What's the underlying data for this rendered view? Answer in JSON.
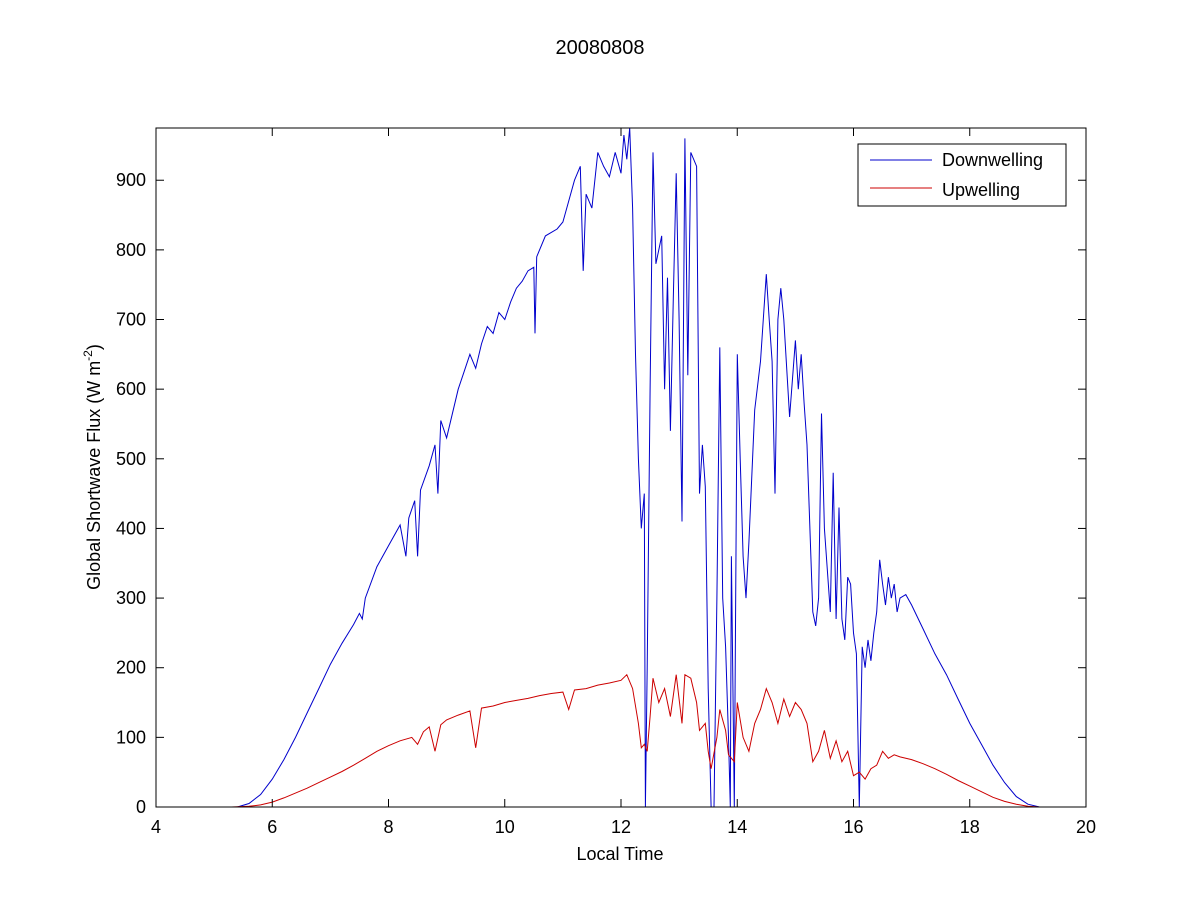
{
  "chart_data": {
    "type": "line",
    "title": "20080808",
    "xlabel": "Local Time",
    "ylabel": "Global Shortwave Flux (W m",
    "ylabel_sup": "-2",
    "ylabel_close": ")",
    "xlim": [
      4,
      20
    ],
    "ylim": [
      0,
      975
    ],
    "xticks": [
      4,
      6,
      8,
      10,
      12,
      14,
      16,
      18,
      20
    ],
    "yticks": [
      0,
      100,
      200,
      300,
      400,
      500,
      600,
      700,
      800,
      900
    ],
    "grid": false,
    "legend_position": "top-right",
    "series": [
      {
        "name": "Downwelling",
        "color": "#0000cc",
        "points": [
          [
            5.4,
            0
          ],
          [
            5.6,
            5
          ],
          [
            5.8,
            18
          ],
          [
            6.0,
            40
          ],
          [
            6.2,
            68
          ],
          [
            6.4,
            100
          ],
          [
            6.6,
            135
          ],
          [
            6.8,
            170
          ],
          [
            7.0,
            205
          ],
          [
            7.2,
            235
          ],
          [
            7.4,
            262
          ],
          [
            7.5,
            278
          ],
          [
            7.55,
            270
          ],
          [
            7.6,
            300
          ],
          [
            7.8,
            345
          ],
          [
            8.0,
            375
          ],
          [
            8.2,
            405
          ],
          [
            8.3,
            360
          ],
          [
            8.35,
            415
          ],
          [
            8.45,
            440
          ],
          [
            8.5,
            360
          ],
          [
            8.55,
            455
          ],
          [
            8.7,
            490
          ],
          [
            8.8,
            520
          ],
          [
            8.85,
            450
          ],
          [
            8.9,
            555
          ],
          [
            9.0,
            530
          ],
          [
            9.2,
            600
          ],
          [
            9.3,
            625
          ],
          [
            9.4,
            650
          ],
          [
            9.5,
            630
          ],
          [
            9.6,
            665
          ],
          [
            9.7,
            690
          ],
          [
            9.8,
            680
          ],
          [
            9.9,
            710
          ],
          [
            10.0,
            700
          ],
          [
            10.1,
            725
          ],
          [
            10.2,
            745
          ],
          [
            10.3,
            755
          ],
          [
            10.4,
            770
          ],
          [
            10.5,
            775
          ],
          [
            10.52,
            680
          ],
          [
            10.55,
            790
          ],
          [
            10.7,
            820
          ],
          [
            10.9,
            830
          ],
          [
            11.0,
            840
          ],
          [
            11.1,
            870
          ],
          [
            11.2,
            900
          ],
          [
            11.3,
            920
          ],
          [
            11.35,
            770
          ],
          [
            11.4,
            880
          ],
          [
            11.5,
            860
          ],
          [
            11.6,
            940
          ],
          [
            11.7,
            920
          ],
          [
            11.8,
            905
          ],
          [
            11.9,
            940
          ],
          [
            12.0,
            910
          ],
          [
            12.05,
            965
          ],
          [
            12.1,
            930
          ],
          [
            12.15,
            975
          ],
          [
            12.2,
            860
          ],
          [
            12.25,
            650
          ],
          [
            12.3,
            500
          ],
          [
            12.35,
            400
          ],
          [
            12.4,
            450
          ],
          [
            12.42,
            0
          ],
          [
            12.45,
            200
          ],
          [
            12.5,
            600
          ],
          [
            12.55,
            940
          ],
          [
            12.6,
            780
          ],
          [
            12.7,
            820
          ],
          [
            12.75,
            600
          ],
          [
            12.8,
            760
          ],
          [
            12.85,
            540
          ],
          [
            12.9,
            730
          ],
          [
            12.95,
            910
          ],
          [
            13.0,
            700
          ],
          [
            13.05,
            410
          ],
          [
            13.1,
            960
          ],
          [
            13.15,
            620
          ],
          [
            13.2,
            940
          ],
          [
            13.3,
            920
          ],
          [
            13.35,
            450
          ],
          [
            13.4,
            520
          ],
          [
            13.45,
            460
          ],
          [
            13.5,
            170
          ],
          [
            13.55,
            0
          ],
          [
            13.6,
            0
          ],
          [
            13.65,
            300
          ],
          [
            13.7,
            660
          ],
          [
            13.75,
            300
          ],
          [
            13.8,
            230
          ],
          [
            13.85,
            100
          ],
          [
            13.88,
            0
          ],
          [
            13.9,
            360
          ],
          [
            13.95,
            0
          ],
          [
            14.0,
            650
          ],
          [
            14.05,
            500
          ],
          [
            14.1,
            360
          ],
          [
            14.15,
            300
          ],
          [
            14.2,
            380
          ],
          [
            14.3,
            570
          ],
          [
            14.4,
            640
          ],
          [
            14.5,
            765
          ],
          [
            14.55,
            700
          ],
          [
            14.6,
            640
          ],
          [
            14.65,
            450
          ],
          [
            14.7,
            700
          ],
          [
            14.75,
            745
          ],
          [
            14.8,
            700
          ],
          [
            14.9,
            560
          ],
          [
            15.0,
            670
          ],
          [
            15.05,
            600
          ],
          [
            15.1,
            650
          ],
          [
            15.15,
            580
          ],
          [
            15.2,
            520
          ],
          [
            15.3,
            280
          ],
          [
            15.35,
            260
          ],
          [
            15.4,
            300
          ],
          [
            15.45,
            565
          ],
          [
            15.5,
            400
          ],
          [
            15.6,
            280
          ],
          [
            15.65,
            480
          ],
          [
            15.7,
            270
          ],
          [
            15.75,
            430
          ],
          [
            15.8,
            270
          ],
          [
            15.85,
            240
          ],
          [
            15.9,
            330
          ],
          [
            15.95,
            320
          ],
          [
            16.0,
            250
          ],
          [
            16.05,
            220
          ],
          [
            16.1,
            0
          ],
          [
            16.15,
            230
          ],
          [
            16.2,
            200
          ],
          [
            16.25,
            240
          ],
          [
            16.3,
            210
          ],
          [
            16.35,
            250
          ],
          [
            16.4,
            280
          ],
          [
            16.45,
            355
          ],
          [
            16.5,
            320
          ],
          [
            16.55,
            290
          ],
          [
            16.6,
            330
          ],
          [
            16.65,
            300
          ],
          [
            16.7,
            320
          ],
          [
            16.75,
            280
          ],
          [
            16.8,
            300
          ],
          [
            16.9,
            305
          ],
          [
            17.0,
            290
          ],
          [
            17.2,
            255
          ],
          [
            17.4,
            220
          ],
          [
            17.6,
            190
          ],
          [
            17.8,
            155
          ],
          [
            18.0,
            120
          ],
          [
            18.2,
            90
          ],
          [
            18.4,
            60
          ],
          [
            18.6,
            35
          ],
          [
            18.8,
            15
          ],
          [
            19.0,
            4
          ],
          [
            19.2,
            0
          ]
        ]
      },
      {
        "name": "Upwelling",
        "color": "#cc0000",
        "points": [
          [
            5.3,
            0
          ],
          [
            5.6,
            1
          ],
          [
            5.8,
            3
          ],
          [
            6.0,
            7
          ],
          [
            6.2,
            13
          ],
          [
            6.4,
            20
          ],
          [
            6.6,
            27
          ],
          [
            6.8,
            35
          ],
          [
            7.0,
            43
          ],
          [
            7.2,
            51
          ],
          [
            7.4,
            60
          ],
          [
            7.6,
            70
          ],
          [
            7.8,
            80
          ],
          [
            8.0,
            88
          ],
          [
            8.2,
            95
          ],
          [
            8.4,
            100
          ],
          [
            8.5,
            90
          ],
          [
            8.6,
            108
          ],
          [
            8.7,
            115
          ],
          [
            8.8,
            80
          ],
          [
            8.9,
            118
          ],
          [
            9.0,
            125
          ],
          [
            9.2,
            132
          ],
          [
            9.4,
            138
          ],
          [
            9.5,
            85
          ],
          [
            9.6,
            142
          ],
          [
            9.8,
            145
          ],
          [
            10.0,
            150
          ],
          [
            10.2,
            153
          ],
          [
            10.4,
            156
          ],
          [
            10.6,
            160
          ],
          [
            10.8,
            163
          ],
          [
            11.0,
            165
          ],
          [
            11.1,
            140
          ],
          [
            11.2,
            168
          ],
          [
            11.4,
            170
          ],
          [
            11.6,
            175
          ],
          [
            11.8,
            178
          ],
          [
            12.0,
            182
          ],
          [
            12.1,
            190
          ],
          [
            12.2,
            170
          ],
          [
            12.3,
            120
          ],
          [
            12.35,
            85
          ],
          [
            12.4,
            90
          ],
          [
            12.45,
            80
          ],
          [
            12.5,
            130
          ],
          [
            12.55,
            185
          ],
          [
            12.65,
            150
          ],
          [
            12.75,
            170
          ],
          [
            12.85,
            130
          ],
          [
            12.95,
            190
          ],
          [
            13.05,
            120
          ],
          [
            13.1,
            190
          ],
          [
            13.2,
            185
          ],
          [
            13.3,
            150
          ],
          [
            13.35,
            110
          ],
          [
            13.45,
            120
          ],
          [
            13.5,
            80
          ],
          [
            13.55,
            55
          ],
          [
            13.65,
            100
          ],
          [
            13.7,
            140
          ],
          [
            13.8,
            110
          ],
          [
            13.85,
            75
          ],
          [
            13.95,
            65
          ],
          [
            14.0,
            150
          ],
          [
            14.1,
            100
          ],
          [
            14.2,
            80
          ],
          [
            14.3,
            120
          ],
          [
            14.4,
            140
          ],
          [
            14.5,
            170
          ],
          [
            14.6,
            150
          ],
          [
            14.7,
            120
          ],
          [
            14.8,
            155
          ],
          [
            14.9,
            130
          ],
          [
            15.0,
            150
          ],
          [
            15.1,
            140
          ],
          [
            15.2,
            120
          ],
          [
            15.3,
            65
          ],
          [
            15.4,
            80
          ],
          [
            15.5,
            110
          ],
          [
            15.6,
            70
          ],
          [
            15.7,
            95
          ],
          [
            15.8,
            65
          ],
          [
            15.9,
            80
          ],
          [
            16.0,
            45
          ],
          [
            16.1,
            50
          ],
          [
            16.2,
            40
          ],
          [
            16.3,
            55
          ],
          [
            16.4,
            60
          ],
          [
            16.5,
            80
          ],
          [
            16.6,
            70
          ],
          [
            16.7,
            75
          ],
          [
            16.8,
            72
          ],
          [
            17.0,
            68
          ],
          [
            17.2,
            62
          ],
          [
            17.4,
            55
          ],
          [
            17.6,
            47
          ],
          [
            17.8,
            38
          ],
          [
            18.0,
            30
          ],
          [
            18.2,
            22
          ],
          [
            18.4,
            14
          ],
          [
            18.6,
            8
          ],
          [
            18.8,
            4
          ],
          [
            19.0,
            1
          ],
          [
            19.2,
            0
          ]
        ]
      }
    ]
  }
}
